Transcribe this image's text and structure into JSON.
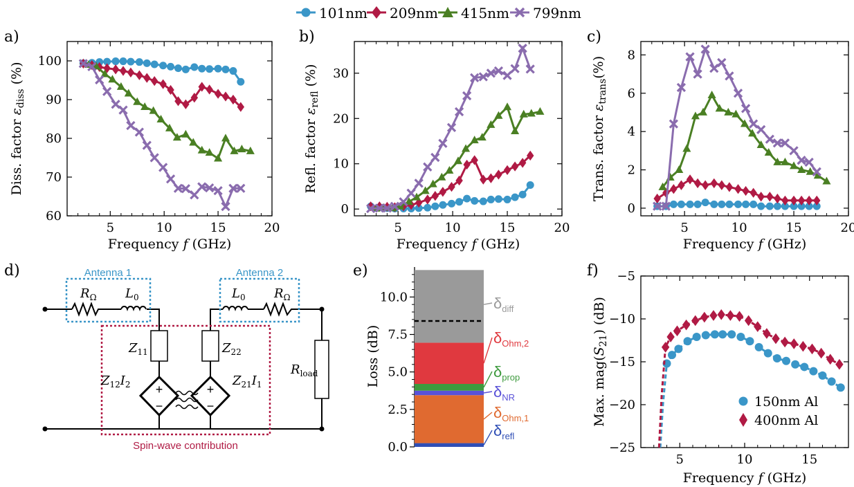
{
  "colors": {
    "c101": "#3a96c8",
    "c209": "#b01a44",
    "c415": "#4a7f23",
    "c799": "#8a6cae",
    "antenna": "#3a96c8",
    "spinwave": "#b01a44",
    "text": "#000000"
  },
  "legend": [
    {
      "label": "101nm",
      "marker": "circle",
      "color": "#3a96c8"
    },
    {
      "label": "209nm",
      "marker": "diamond",
      "color": "#b01a44"
    },
    {
      "label": "415nm",
      "marker": "triangle",
      "color": "#4a7f23"
    },
    {
      "label": "799nm",
      "marker": "cross",
      "color": "#8a6cae"
    }
  ],
  "chart_data": [
    {
      "id": "a",
      "panel_label": "a)",
      "type": "line",
      "xlabel": "Frequency f (GHz)",
      "ylabel": "Diss. factor ε_diss (%)",
      "xlim": [
        1,
        20
      ],
      "ylim": [
        60,
        105
      ],
      "xticks": [
        5,
        10,
        15,
        20
      ],
      "yticks": [
        60,
        70,
        80,
        90,
        100
      ],
      "xtick_labels": [
        "5",
        "10",
        "15",
        "20"
      ],
      "ytick_labels": [
        "60",
        "70",
        "80",
        "90",
        "100"
      ],
      "series": [
        {
          "name": "101nm",
          "marker": "circle",
          "color": "#3a96c8",
          "x": [
            2.5,
            3.3,
            4.0,
            4.7,
            5.5,
            6.2,
            6.9,
            7.7,
            8.4,
            9.1,
            9.9,
            10.6,
            11.3,
            12.0,
            12.8,
            13.5,
            14.2,
            15.0,
            15.7,
            16.4,
            17.1
          ],
          "y": [
            99.4,
            99.5,
            99.7,
            99.8,
            99.9,
            99.9,
            99.8,
            99.7,
            99.4,
            99.1,
            98.8,
            98.5,
            98.1,
            97.8,
            98.4,
            98.0,
            97.9,
            98.0,
            97.8,
            97.4,
            94.6
          ]
        },
        {
          "name": "209nm",
          "marker": "diamond",
          "color": "#b01a44",
          "x": [
            2.5,
            3.3,
            4.0,
            4.7,
            5.5,
            6.2,
            6.9,
            7.7,
            8.4,
            9.1,
            9.9,
            10.6,
            11.3,
            12.0,
            12.8,
            13.5,
            14.2,
            15.0,
            15.7,
            16.4,
            17.1
          ],
          "y": [
            99.3,
            98.9,
            98.4,
            98.1,
            97.8,
            97.4,
            97.0,
            96.3,
            95.6,
            94.8,
            94.0,
            92.5,
            89.6,
            88.8,
            90.5,
            93.3,
            92.6,
            91.5,
            90.8,
            90.0,
            88.1
          ]
        },
        {
          "name": "415nm",
          "marker": "triangle",
          "color": "#4a7f23",
          "x": [
            3.0,
            3.7,
            4.5,
            5.2,
            6.0,
            6.7,
            7.5,
            8.2,
            9.0,
            9.7,
            10.5,
            11.2,
            12.0,
            12.7,
            13.5,
            14.2,
            15.0,
            15.7,
            16.5,
            17.2,
            18.0
          ],
          "y": [
            99.0,
            98.6,
            96.6,
            95.2,
            93.3,
            91.6,
            89.4,
            88.1,
            87.1,
            84.9,
            82.6,
            80.2,
            81.0,
            78.9,
            76.9,
            76.3,
            74.8,
            80.0,
            76.7,
            77.2,
            76.7
          ]
        },
        {
          "name": "799nm",
          "marker": "cross",
          "color": "#8a6cae",
          "x": [
            2.5,
            3.3,
            4.0,
            4.7,
            5.5,
            6.2,
            6.9,
            7.7,
            8.4,
            9.1,
            9.9,
            10.6,
            11.3,
            12.0,
            12.8,
            13.5,
            14.2,
            15.0,
            15.7,
            16.4,
            17.1
          ],
          "y": [
            99.3,
            98.5,
            95.1,
            92.1,
            88.8,
            87.3,
            83.3,
            81.6,
            78.2,
            75.0,
            72.5,
            69.5,
            67.1,
            67.0,
            65.4,
            67.5,
            67.2,
            66.5,
            62.4,
            67.1,
            67.1
          ]
        }
      ]
    },
    {
      "id": "b",
      "panel_label": "b)",
      "type": "line",
      "xlabel": "Frequency f (GHz)",
      "ylabel": "Refl. factor ε_refl (%)",
      "xlim": [
        1,
        20
      ],
      "ylim": [
        -1.5,
        37
      ],
      "xticks": [
        5,
        10,
        15,
        20
      ],
      "yticks": [
        0,
        10,
        20,
        30
      ],
      "xtick_labels": [
        "5",
        "10",
        "15",
        "20"
      ],
      "ytick_labels": [
        "0",
        "10",
        "20",
        "30"
      ],
      "series": [
        {
          "name": "101nm",
          "marker": "circle",
          "color": "#3a96c8",
          "x": [
            2.5,
            3.3,
            4.0,
            4.7,
            5.5,
            6.2,
            6.9,
            7.7,
            8.4,
            9.1,
            9.9,
            10.6,
            11.3,
            12.0,
            12.8,
            13.5,
            14.2,
            15.0,
            15.7,
            16.4,
            17.1
          ],
          "y": [
            0.6,
            0.4,
            0.2,
            0.1,
            0.1,
            0.1,
            0.2,
            0.3,
            0.6,
            0.9,
            1.2,
            1.6,
            2.3,
            1.8,
            1.7,
            2.1,
            2.2,
            2.1,
            2.6,
            3.2,
            5.3
          ]
        },
        {
          "name": "209nm",
          "marker": "diamond",
          "color": "#b01a44",
          "x": [
            2.5,
            3.3,
            4.0,
            4.7,
            5.5,
            6.2,
            6.9,
            7.7,
            8.4,
            9.1,
            9.9,
            10.6,
            11.3,
            12.0,
            12.8,
            13.5,
            14.2,
            15.0,
            15.7,
            16.4,
            17.1
          ],
          "y": [
            0.6,
            0.6,
            0.5,
            0.4,
            0.6,
            0.9,
            1.4,
            2.1,
            2.9,
            3.8,
            4.9,
            6.3,
            9.8,
            10.8,
            6.5,
            6.8,
            7.6,
            8.6,
            9.4,
            10.2,
            11.8
          ]
        },
        {
          "name": "415nm",
          "marker": "triangle",
          "color": "#4a7f23",
          "x": [
            3.0,
            3.7,
            4.5,
            5.2,
            6.0,
            6.7,
            7.5,
            8.2,
            9.0,
            9.7,
            10.5,
            11.2,
            12.0,
            12.7,
            13.5,
            14.2,
            15.0,
            15.7,
            16.5,
            17.2,
            18.0
          ],
          "y": [
            0.1,
            0.3,
            0.2,
            0.6,
            1.6,
            2.6,
            4.0,
            5.5,
            7.0,
            8.5,
            10.6,
            13.3,
            15.2,
            15.8,
            18.6,
            20.6,
            22.5,
            17.2,
            20.9,
            21.1,
            21.5
          ]
        },
        {
          "name": "799nm",
          "marker": "cross",
          "color": "#8a6cae",
          "x": [
            2.5,
            3.3,
            4.0,
            4.7,
            5.5,
            6.2,
            6.9,
            7.7,
            8.4,
            9.1,
            9.9,
            10.6,
            11.3,
            12.0,
            12.8,
            13.5,
            14.2,
            15.0,
            15.7,
            16.4,
            17.1
          ],
          "y": [
            0.1,
            0.2,
            0.2,
            0.6,
            1.6,
            3.5,
            5.7,
            9.3,
            11.4,
            14.5,
            18.0,
            21.5,
            25.0,
            29.0,
            29.2,
            30.0,
            30.5,
            29.5,
            31.0,
            35.5,
            30.9
          ]
        }
      ]
    },
    {
      "id": "c",
      "panel_label": "c)",
      "type": "line",
      "xlabel": "Frequency f (GHz)",
      "ylabel": "Trans. factor ε_trans (%)",
      "xlim": [
        1,
        20
      ],
      "ylim": [
        -0.4,
        8.7
      ],
      "xticks": [
        5,
        10,
        15,
        20
      ],
      "yticks": [
        0,
        2,
        4,
        6,
        8
      ],
      "xtick_labels": [
        "5",
        "10",
        "15",
        "20"
      ],
      "ytick_labels": [
        "0",
        "2",
        "4",
        "6",
        "8"
      ],
      "series": [
        {
          "name": "101nm",
          "marker": "circle",
          "color": "#3a96c8",
          "x": [
            2.5,
            3.3,
            4.0,
            4.7,
            5.5,
            6.2,
            6.9,
            7.7,
            8.4,
            9.1,
            9.9,
            10.6,
            11.3,
            12.0,
            12.8,
            13.5,
            14.2,
            15.0,
            15.7,
            16.4,
            17.1
          ],
          "y": [
            0.1,
            0.1,
            0.2,
            0.2,
            0.2,
            0.2,
            0.3,
            0.2,
            0.2,
            0.2,
            0.2,
            0.2,
            0.2,
            0.1,
            0.1,
            0.1,
            0.1,
            0.1,
            0.1,
            0.1,
            0.1
          ]
        },
        {
          "name": "209nm",
          "marker": "diamond",
          "color": "#b01a44",
          "x": [
            2.5,
            3.3,
            4.0,
            4.7,
            5.5,
            6.2,
            6.9,
            7.7,
            8.4,
            9.1,
            9.9,
            10.6,
            11.3,
            12.0,
            12.8,
            13.5,
            14.2,
            15.0,
            15.7,
            16.4,
            17.1
          ],
          "y": [
            0.5,
            0.8,
            1.0,
            1.2,
            1.5,
            1.3,
            1.2,
            1.3,
            1.2,
            1.1,
            1.0,
            0.9,
            0.8,
            0.6,
            0.6,
            0.5,
            0.4,
            0.4,
            0.4,
            0.4,
            0.4
          ]
        },
        {
          "name": "415nm",
          "marker": "triangle",
          "color": "#4a7f23",
          "x": [
            3.0,
            3.7,
            4.5,
            5.2,
            6.0,
            6.7,
            7.5,
            8.2,
            9.0,
            9.7,
            10.5,
            11.2,
            12.0,
            12.7,
            13.5,
            14.2,
            15.0,
            15.7,
            16.5,
            17.2,
            18.0
          ],
          "y": [
            1.1,
            1.6,
            2.0,
            3.1,
            4.8,
            5.0,
            5.9,
            5.2,
            5.0,
            4.9,
            4.4,
            3.9,
            3.3,
            2.9,
            2.4,
            2.4,
            2.2,
            2.0,
            1.9,
            1.7,
            1.4
          ]
        },
        {
          "name": "799nm",
          "marker": "cross",
          "color": "#8a6cae",
          "x": [
            2.5,
            3.3,
            4.0,
            4.7,
            5.5,
            6.2,
            6.9,
            7.7,
            8.4,
            9.1,
            9.9,
            10.6,
            11.3,
            12.0,
            12.8,
            13.5,
            14.2,
            15.0,
            15.7,
            16.4,
            17.1
          ],
          "y": [
            0.1,
            0.1,
            4.4,
            6.3,
            7.9,
            7.0,
            8.3,
            7.3,
            7.6,
            6.9,
            6.0,
            5.2,
            4.4,
            4.1,
            3.6,
            3.4,
            3.4,
            3.0,
            2.5,
            2.4,
            1.9
          ]
        }
      ]
    },
    {
      "id": "e",
      "panel_label": "e)",
      "type": "bar",
      "ylabel": "Loss (dB)",
      "ylim": [
        0,
        12
      ],
      "yticks": [
        0,
        2.5,
        5,
        7.5,
        10
      ],
      "ytick_labels": [
        "0.0",
        "2.5",
        "5.0",
        "7.5",
        "10.0"
      ],
      "dashed_line_at": 8.4,
      "segments": [
        {
          "name": "refl",
          "label_main": "δ",
          "label_sub": "refl",
          "from": 0.0,
          "to": 0.25,
          "color": "#2f4eb5"
        },
        {
          "name": "Ohm,1",
          "label_main": "δ",
          "label_sub": "Ohm,1",
          "from": 0.25,
          "to": 3.45,
          "color": "#e06a30"
        },
        {
          "name": "NR",
          "label_main": "δ",
          "label_sub": "NR",
          "from": 3.45,
          "to": 3.75,
          "color": "#5a52d8"
        },
        {
          "name": "prop",
          "label_main": "δ",
          "label_sub": "prop",
          "from": 3.75,
          "to": 4.2,
          "color": "#3e9a3e"
        },
        {
          "name": "Ohm,2",
          "label_main": "δ",
          "label_sub": "Ohm,2",
          "from": 4.2,
          "to": 6.95,
          "color": "#e0393f"
        },
        {
          "name": "diff",
          "label_main": "δ",
          "label_sub": "diff",
          "from": 6.95,
          "to": 11.8,
          "color": "#9a9a9a"
        }
      ]
    },
    {
      "id": "f",
      "panel_label": "f)",
      "type": "scatter",
      "xlabel": "Frequency f (GHz)",
      "ylabel": "Max. mag(S21) (dB)",
      "xlim": [
        2,
        18
      ],
      "ylim": [
        -25,
        -5
      ],
      "xticks": [
        5,
        10,
        15
      ],
      "yticks": [
        -25,
        -20,
        -15,
        -10,
        -5
      ],
      "xtick_labels": [
        "5",
        "10",
        "15"
      ],
      "ytick_labels": [
        "−25",
        "−20",
        "−15",
        "−10",
        "−5"
      ],
      "series": [
        {
          "name": "150nm Al",
          "marker": "circle",
          "color": "#3a96c8",
          "x": [
            3.5,
            3.7,
            4.0,
            4.4,
            4.9,
            5.6,
            6.3,
            7.0,
            7.7,
            8.3,
            9.0,
            9.7,
            10.4,
            11.1,
            11.8,
            12.5,
            13.2,
            13.9,
            14.6,
            15.3,
            16.0,
            16.7,
            17.4
          ],
          "y": [
            -25,
            -20,
            -15.2,
            -14.2,
            -13.5,
            -12.6,
            -12.1,
            -11.9,
            -11.8,
            -11.8,
            -11.8,
            -12.1,
            -12.6,
            -13.3,
            -14.0,
            -14.6,
            -14.9,
            -15.3,
            -15.6,
            -16.1,
            -16.6,
            -17.3,
            -18.0
          ]
        },
        {
          "name": "400nm Al",
          "marker": "diamond",
          "color": "#b01a44",
          "x": [
            3.4,
            3.6,
            3.9,
            4.3,
            4.8,
            5.5,
            6.2,
            6.9,
            7.6,
            8.2,
            8.9,
            9.6,
            10.3,
            11.0,
            11.7,
            12.4,
            13.1,
            13.8,
            14.5,
            15.2,
            15.9,
            16.6,
            17.3
          ],
          "y": [
            -25,
            -19,
            -13.3,
            -12.1,
            -11.4,
            -10.7,
            -10.2,
            -9.8,
            -9.6,
            -9.5,
            -9.6,
            -9.7,
            -10.2,
            -10.9,
            -11.7,
            -12.3,
            -12.7,
            -12.9,
            -13.2,
            -13.5,
            -14.0,
            -14.7,
            -15.3
          ]
        }
      ]
    }
  ],
  "panels": {
    "a": {
      "label": "a)",
      "ylab_main": "Diss. factor ",
      "ylab_eps": "ε",
      "ylab_sub": "diss",
      "ylab_unit": " (%)"
    },
    "b": {
      "label": "b)",
      "ylab_main": "Refl. factor ",
      "ylab_eps": "ε",
      "ylab_sub": "refl",
      "ylab_unit": " (%)"
    },
    "c": {
      "label": "c)",
      "ylab_main": "Trans. factor ",
      "ylab_eps": "ε",
      "ylab_sub": "trans",
      "ylab_unit": "(%)"
    },
    "d": {
      "label": "d)"
    },
    "e": {
      "label": "e)",
      "ylab": "Loss (dB)"
    },
    "f": {
      "label": "f)",
      "ylab_main": "Max. mag(",
      "ylab_s": "S",
      "ylab_sub": "21",
      "ylab_unit": ") (dB)"
    },
    "xlabel_main": "Frequency ",
    "xlabel_f": "f",
    "xlabel_unit": " (GHz)"
  },
  "circuit": {
    "antenna1": "Antenna 1",
    "antenna2": "Antenna 2",
    "r_main": "R",
    "r_sub": "Ω",
    "l_main": "L",
    "l_sub": "0",
    "z11_main": "Z",
    "z11_sub": "11",
    "z22_main": "Z",
    "z22_sub": "22",
    "src1_main": "Z",
    "src1_sub": "12",
    "src1_i": "I",
    "src1_isub": "2",
    "src2_main": "Z",
    "src2_sub": "21",
    "src2_i": "I",
    "src2_isub": "1",
    "rload_main": "R",
    "rload_sub": "load",
    "plus": "+",
    "minus": "−",
    "spinwave": "Spin-wave contribution"
  }
}
